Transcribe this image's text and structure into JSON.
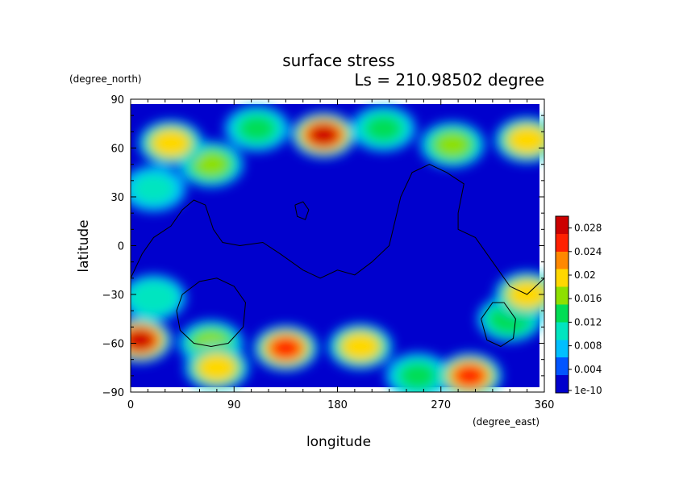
{
  "chart_data": {
    "type": "heatmap",
    "title": "surface stress",
    "subtitle": "Ls = 210.98502 degree",
    "xlabel": "longitude",
    "ylabel": "latitude",
    "x_unit": "(degree_east)",
    "y_unit": "(degree_north)",
    "xlim": [
      0,
      360
    ],
    "ylim": [
      -90,
      90
    ],
    "x_ticks": [
      0,
      90,
      180,
      270,
      360
    ],
    "y_ticks": [
      -90,
      -60,
      -30,
      0,
      30,
      60,
      90
    ],
    "colorbar": {
      "min": 0.0,
      "max": 0.03,
      "tick_labels": [
        "1e-10",
        "0.004",
        "0.008",
        "0.012",
        "0.016",
        "0.02",
        "0.024",
        "0.028"
      ],
      "tick_values": [
        0,
        0.004,
        0.008,
        0.012,
        0.016,
        0.02,
        0.024,
        0.028
      ],
      "colormap": [
        "#0000cd",
        "#0055ff",
        "#00bfff",
        "#00e5c0",
        "#00dd55",
        "#8ee000",
        "#ffd800",
        "#ff8800",
        "#ff2000",
        "#cc0000"
      ]
    },
    "background_value": 0.002,
    "hotspots": [
      {
        "lon": 168,
        "lat": 68,
        "value": 0.028
      },
      {
        "lon": 8,
        "lat": -58,
        "value": 0.027
      },
      {
        "lon": 295,
        "lat": -80,
        "value": 0.026
      },
      {
        "lon": 135,
        "lat": -63,
        "value": 0.025
      },
      {
        "lon": 75,
        "lat": -75,
        "value": 0.02
      },
      {
        "lon": 35,
        "lat": 63,
        "value": 0.02
      },
      {
        "lon": 200,
        "lat": -62,
        "value": 0.02
      },
      {
        "lon": 345,
        "lat": 65,
        "value": 0.019
      },
      {
        "lon": 345,
        "lat": -30,
        "value": 0.02
      },
      {
        "lon": 70,
        "lat": 50,
        "value": 0.017
      },
      {
        "lon": 280,
        "lat": 62,
        "value": 0.016
      },
      {
        "lon": 70,
        "lat": -60,
        "value": 0.016
      },
      {
        "lon": 250,
        "lat": -80,
        "value": 0.012
      },
      {
        "lon": 330,
        "lat": -45,
        "value": 0.014
      },
      {
        "lon": 220,
        "lat": 72,
        "value": 0.012
      },
      {
        "lon": 20,
        "lat": -32,
        "value": 0.01
      },
      {
        "lon": 110,
        "lat": 72,
        "value": 0.012
      },
      {
        "lon": 20,
        "lat": 35,
        "value": 0.009
      }
    ],
    "topography_contours": [
      {
        "name": "equatorial-outline",
        "points": [
          [
            0,
            -20
          ],
          [
            10,
            -5
          ],
          [
            20,
            5
          ],
          [
            35,
            12
          ],
          [
            45,
            22
          ],
          [
            55,
            28
          ],
          [
            65,
            25
          ],
          [
            72,
            10
          ],
          [
            80,
            2
          ],
          [
            95,
            0
          ],
          [
            115,
            2
          ],
          [
            130,
            -5
          ],
          [
            150,
            -15
          ],
          [
            165,
            -20
          ],
          [
            180,
            -15
          ],
          [
            195,
            -18
          ],
          [
            210,
            -10
          ],
          [
            225,
            0
          ],
          [
            230,
            15
          ],
          [
            235,
            30
          ],
          [
            245,
            45
          ],
          [
            260,
            50
          ],
          [
            275,
            45
          ],
          [
            290,
            38
          ],
          [
            285,
            20
          ],
          [
            285,
            10
          ],
          [
            300,
            5
          ],
          [
            315,
            -10
          ],
          [
            330,
            -25
          ],
          [
            345,
            -30
          ],
          [
            360,
            -20
          ]
        ]
      },
      {
        "name": "small-loop-north",
        "points": [
          [
            143,
            25
          ],
          [
            150,
            27
          ],
          [
            155,
            22
          ],
          [
            152,
            16
          ],
          [
            145,
            18
          ],
          [
            143,
            25
          ]
        ]
      },
      {
        "name": "west-southern-crater",
        "points": [
          [
            40,
            -40
          ],
          [
            45,
            -30
          ],
          [
            60,
            -22
          ],
          [
            75,
            -20
          ],
          [
            90,
            -25
          ],
          [
            100,
            -35
          ],
          [
            98,
            -50
          ],
          [
            85,
            -60
          ],
          [
            70,
            -62
          ],
          [
            55,
            -60
          ],
          [
            43,
            -52
          ],
          [
            40,
            -40
          ]
        ]
      },
      {
        "name": "east-southern-crater",
        "points": [
          [
            305,
            -45
          ],
          [
            315,
            -35
          ],
          [
            325,
            -35
          ],
          [
            335,
            -45
          ],
          [
            333,
            -57
          ],
          [
            322,
            -62
          ],
          [
            310,
            -58
          ],
          [
            305,
            -45
          ]
        ]
      }
    ]
  }
}
